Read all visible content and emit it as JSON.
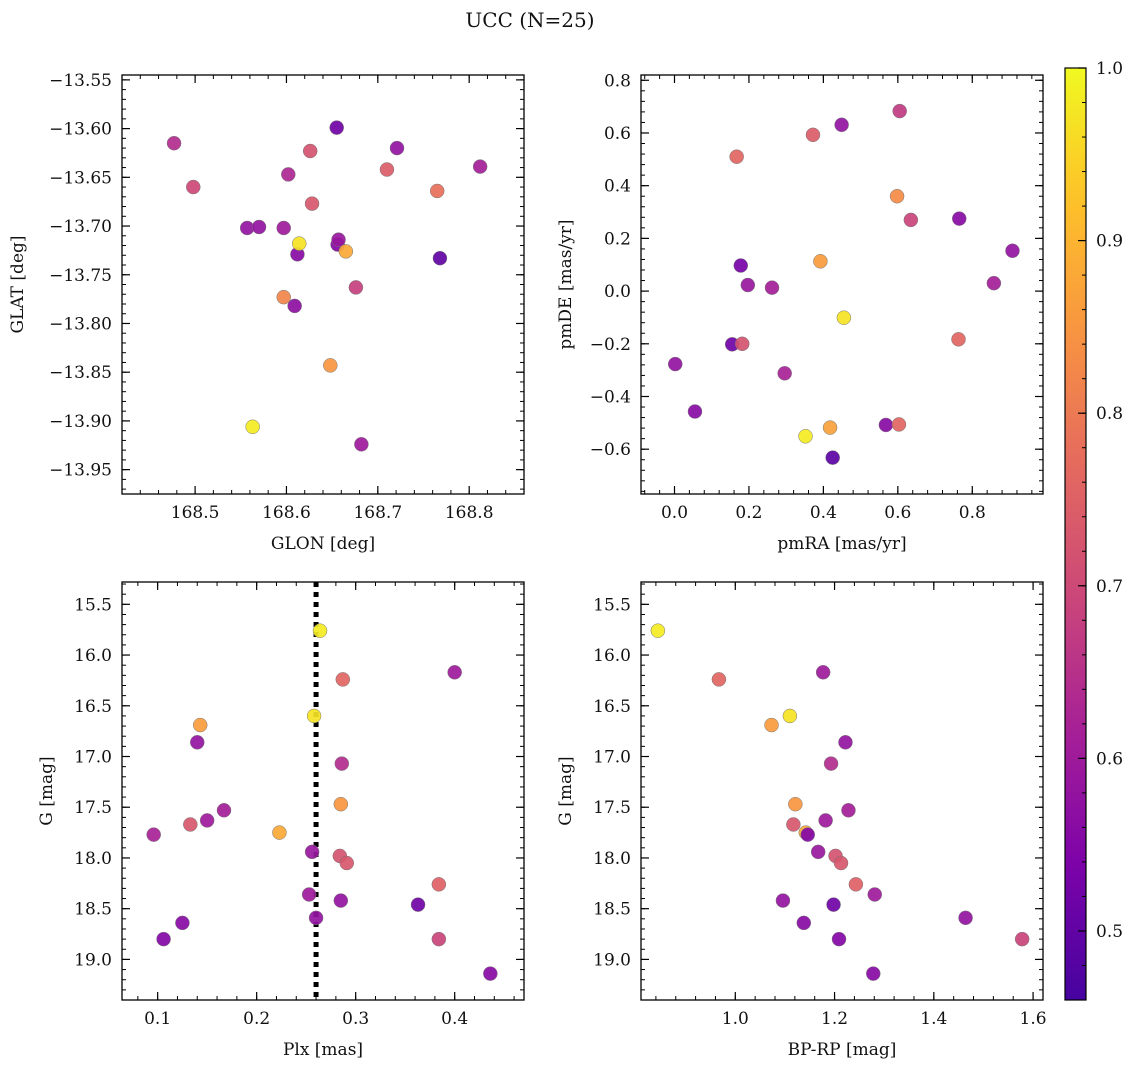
{
  "figure": {
    "title": "UCC (N=25)"
  },
  "colorbar": {
    "vmin": 0.46,
    "vmax": 1.0,
    "ticks": [
      "0.5",
      "0.6",
      "0.7",
      "0.8",
      "0.9",
      "1.0"
    ],
    "tick_values": [
      0.5,
      0.6,
      0.7,
      0.8,
      0.9,
      1.0
    ],
    "colormap": "plasma"
  },
  "chart_data": [
    {
      "type": "scatter",
      "id": "glon-glat",
      "xlabel": "GLON [deg]",
      "ylabel": "GLAT [deg]",
      "xlim": [
        168.42,
        168.86
      ],
      "ylim": [
        -13.975,
        -13.545
      ],
      "xticks": [
        168.5,
        168.6,
        168.7,
        168.8
      ],
      "xticklabels": [
        "168.5",
        "168.6",
        "168.7",
        "168.8"
      ],
      "yticks": [
        -13.55,
        -13.6,
        -13.65,
        -13.7,
        -13.75,
        -13.8,
        -13.85,
        -13.9,
        -13.95
      ],
      "yticklabels": [
        "−13.55",
        "−13.60",
        "−13.65",
        "−13.70",
        "−13.75",
        "−13.80",
        "−13.85",
        "−13.90",
        "−13.95"
      ],
      "grid": false,
      "points": [
        {
          "x": 168.477,
          "y": -13.615,
          "c": 0.64
        },
        {
          "x": 168.498,
          "y": -13.66,
          "c": 0.7
        },
        {
          "x": 168.557,
          "y": -13.702,
          "c": 0.58
        },
        {
          "x": 168.57,
          "y": -13.701,
          "c": 0.58
        },
        {
          "x": 168.563,
          "y": -13.906,
          "c": 0.98
        },
        {
          "x": 168.597,
          "y": -13.702,
          "c": 0.6
        },
        {
          "x": 168.602,
          "y": -13.647,
          "c": 0.63
        },
        {
          "x": 168.597,
          "y": -13.773,
          "c": 0.82
        },
        {
          "x": 168.609,
          "y": -13.782,
          "c": 0.57
        },
        {
          "x": 168.612,
          "y": -13.729,
          "c": 0.56
        },
        {
          "x": 168.614,
          "y": -13.718,
          "c": 0.97
        },
        {
          "x": 168.626,
          "y": -13.623,
          "c": 0.72
        },
        {
          "x": 168.628,
          "y": -13.677,
          "c": 0.73
        },
        {
          "x": 168.648,
          "y": -13.843,
          "c": 0.85
        },
        {
          "x": 168.655,
          "y": -13.599,
          "c": 0.52
        },
        {
          "x": 168.656,
          "y": -13.719,
          "c": 0.55
        },
        {
          "x": 168.657,
          "y": -13.714,
          "c": 0.59
        },
        {
          "x": 168.665,
          "y": -13.726,
          "c": 0.88
        },
        {
          "x": 168.676,
          "y": -13.763,
          "c": 0.68
        },
        {
          "x": 168.682,
          "y": -13.924,
          "c": 0.6
        },
        {
          "x": 168.71,
          "y": -13.642,
          "c": 0.74
        },
        {
          "x": 168.721,
          "y": -13.62,
          "c": 0.58
        },
        {
          "x": 168.765,
          "y": -13.664,
          "c": 0.78
        },
        {
          "x": 168.768,
          "y": -13.733,
          "c": 0.5
        },
        {
          "x": 168.812,
          "y": -13.639,
          "c": 0.61
        }
      ]
    },
    {
      "type": "scatter",
      "id": "pmra-pmde",
      "xlabel": "pmRA [mas/yr]",
      "ylabel": "pmDE [mas/yr]",
      "xlim": [
        -0.09,
        0.99
      ],
      "ylim": [
        -0.77,
        0.82
      ],
      "xticks": [
        0.0,
        0.2,
        0.4,
        0.6,
        0.8
      ],
      "xticklabels": [
        "0.0",
        "0.2",
        "0.4",
        "0.6",
        "0.8"
      ],
      "yticks": [
        -0.6,
        -0.4,
        -0.2,
        0.0,
        0.2,
        0.4,
        0.6,
        0.8
      ],
      "yticklabels": [
        "−0.6",
        "−0.4",
        "−0.2",
        "0.0",
        "0.2",
        "0.4",
        "0.6",
        "0.8"
      ],
      "grid": false,
      "points": [
        {
          "x": 0.002,
          "y": -0.277,
          "c": 0.58
        },
        {
          "x": 0.055,
          "y": -0.457,
          "c": 0.56
        },
        {
          "x": 0.155,
          "y": -0.202,
          "c": 0.52
        },
        {
          "x": 0.167,
          "y": 0.51,
          "c": 0.76
        },
        {
          "x": 0.178,
          "y": 0.097,
          "c": 0.53
        },
        {
          "x": 0.182,
          "y": -0.2,
          "c": 0.72
        },
        {
          "x": 0.197,
          "y": 0.023,
          "c": 0.59
        },
        {
          "x": 0.262,
          "y": 0.013,
          "c": 0.61
        },
        {
          "x": 0.296,
          "y": -0.312,
          "c": 0.62
        },
        {
          "x": 0.352,
          "y": -0.551,
          "c": 0.98
        },
        {
          "x": 0.372,
          "y": 0.593,
          "c": 0.74
        },
        {
          "x": 0.392,
          "y": 0.113,
          "c": 0.86
        },
        {
          "x": 0.418,
          "y": -0.518,
          "c": 0.87
        },
        {
          "x": 0.425,
          "y": -0.632,
          "c": 0.49
        },
        {
          "x": 0.449,
          "y": 0.631,
          "c": 0.58
        },
        {
          "x": 0.455,
          "y": -0.101,
          "c": 0.97
        },
        {
          "x": 0.568,
          "y": -0.508,
          "c": 0.56
        },
        {
          "x": 0.598,
          "y": 0.36,
          "c": 0.83
        },
        {
          "x": 0.603,
          "y": -0.506,
          "c": 0.76
        },
        {
          "x": 0.605,
          "y": 0.683,
          "c": 0.67
        },
        {
          "x": 0.635,
          "y": 0.27,
          "c": 0.69
        },
        {
          "x": 0.763,
          "y": -0.183,
          "c": 0.76
        },
        {
          "x": 0.765,
          "y": 0.275,
          "c": 0.56
        },
        {
          "x": 0.858,
          "y": 0.03,
          "c": 0.61
        },
        {
          "x": 0.908,
          "y": 0.153,
          "c": 0.58
        }
      ]
    },
    {
      "type": "scatter",
      "id": "plx-g",
      "xlabel": "Plx [mas]",
      "ylabel": "G [mag]",
      "xlim": [
        0.064,
        0.47
      ],
      "ylim": [
        19.4,
        15.28
      ],
      "xticks": [
        0.1,
        0.2,
        0.3,
        0.4
      ],
      "xticklabels": [
        "0.1",
        "0.2",
        "0.3",
        "0.4"
      ],
      "yticks": [
        15.5,
        16.0,
        16.5,
        17.0,
        17.5,
        18.0,
        18.5,
        19.0
      ],
      "yticklabels": [
        "15.5",
        "16.0",
        "16.5",
        "17.0",
        "17.5",
        "18.0",
        "18.5",
        "19.0"
      ],
      "grid": false,
      "vline": 0.26,
      "points": [
        {
          "x": 0.096,
          "y": 17.77,
          "c": 0.62
        },
        {
          "x": 0.106,
          "y": 18.8,
          "c": 0.55
        },
        {
          "x": 0.125,
          "y": 18.64,
          "c": 0.56
        },
        {
          "x": 0.133,
          "y": 17.67,
          "c": 0.73
        },
        {
          "x": 0.14,
          "y": 16.86,
          "c": 0.58
        },
        {
          "x": 0.143,
          "y": 16.69,
          "c": 0.86
        },
        {
          "x": 0.15,
          "y": 17.63,
          "c": 0.6
        },
        {
          "x": 0.167,
          "y": 17.53,
          "c": 0.61
        },
        {
          "x": 0.223,
          "y": 17.75,
          "c": 0.88
        },
        {
          "x": 0.253,
          "y": 18.36,
          "c": 0.6
        },
        {
          "x": 0.256,
          "y": 17.94,
          "c": 0.59
        },
        {
          "x": 0.258,
          "y": 16.6,
          "c": 0.97
        },
        {
          "x": 0.26,
          "y": 18.59,
          "c": 0.58
        },
        {
          "x": 0.264,
          "y": 15.76,
          "c": 0.98
        },
        {
          "x": 0.284,
          "y": 17.98,
          "c": 0.72
        },
        {
          "x": 0.285,
          "y": 17.47,
          "c": 0.85
        },
        {
          "x": 0.285,
          "y": 18.42,
          "c": 0.58
        },
        {
          "x": 0.286,
          "y": 17.07,
          "c": 0.64
        },
        {
          "x": 0.287,
          "y": 16.24,
          "c": 0.76
        },
        {
          "x": 0.291,
          "y": 18.05,
          "c": 0.73
        },
        {
          "x": 0.363,
          "y": 18.46,
          "c": 0.52
        },
        {
          "x": 0.384,
          "y": 18.26,
          "c": 0.75
        },
        {
          "x": 0.384,
          "y": 18.8,
          "c": 0.69
        },
        {
          "x": 0.4,
          "y": 16.17,
          "c": 0.6
        },
        {
          "x": 0.436,
          "y": 19.14,
          "c": 0.56
        }
      ]
    },
    {
      "type": "scatter",
      "id": "bprp-g",
      "xlabel": "BP-RP [mag]",
      "ylabel": "G [mag]",
      "xlim": [
        0.81,
        1.62
      ],
      "ylim": [
        19.4,
        15.28
      ],
      "xticks": [
        1.0,
        1.2,
        1.4,
        1.6
      ],
      "xticklabels": [
        "1.0",
        "1.2",
        "1.4",
        "1.6"
      ],
      "yticks": [
        15.5,
        16.0,
        16.5,
        17.0,
        17.5,
        18.0,
        18.5,
        19.0
      ],
      "yticklabels": [
        "15.5",
        "16.0",
        "16.5",
        "17.0",
        "17.5",
        "18.0",
        "18.5",
        "19.0"
      ],
      "grid": false,
      "points": [
        {
          "x": 0.844,
          "y": 15.76,
          "c": 0.98
        },
        {
          "x": 0.967,
          "y": 16.24,
          "c": 0.76
        },
        {
          "x": 1.073,
          "y": 16.69,
          "c": 0.86
        },
        {
          "x": 1.096,
          "y": 18.42,
          "c": 0.58
        },
        {
          "x": 1.11,
          "y": 16.6,
          "c": 0.97
        },
        {
          "x": 1.117,
          "y": 17.67,
          "c": 0.73
        },
        {
          "x": 1.121,
          "y": 17.47,
          "c": 0.85
        },
        {
          "x": 1.138,
          "y": 18.64,
          "c": 0.56
        },
        {
          "x": 1.142,
          "y": 17.75,
          "c": 0.88
        },
        {
          "x": 1.146,
          "y": 17.77,
          "c": 0.55
        },
        {
          "x": 1.167,
          "y": 17.94,
          "c": 0.59
        },
        {
          "x": 1.177,
          "y": 16.17,
          "c": 0.6
        },
        {
          "x": 1.182,
          "y": 17.63,
          "c": 0.6
        },
        {
          "x": 1.193,
          "y": 17.07,
          "c": 0.64
        },
        {
          "x": 1.198,
          "y": 18.46,
          "c": 0.52
        },
        {
          "x": 1.202,
          "y": 17.98,
          "c": 0.72
        },
        {
          "x": 1.209,
          "y": 18.8,
          "c": 0.55
        },
        {
          "x": 1.213,
          "y": 18.05,
          "c": 0.73
        },
        {
          "x": 1.222,
          "y": 16.86,
          "c": 0.58
        },
        {
          "x": 1.228,
          "y": 17.53,
          "c": 0.61
        },
        {
          "x": 1.243,
          "y": 18.26,
          "c": 0.75
        },
        {
          "x": 1.278,
          "y": 19.14,
          "c": 0.56
        },
        {
          "x": 1.281,
          "y": 18.36,
          "c": 0.6
        },
        {
          "x": 1.464,
          "y": 18.59,
          "c": 0.58
        },
        {
          "x": 1.578,
          "y": 18.8,
          "c": 0.69
        }
      ]
    }
  ]
}
